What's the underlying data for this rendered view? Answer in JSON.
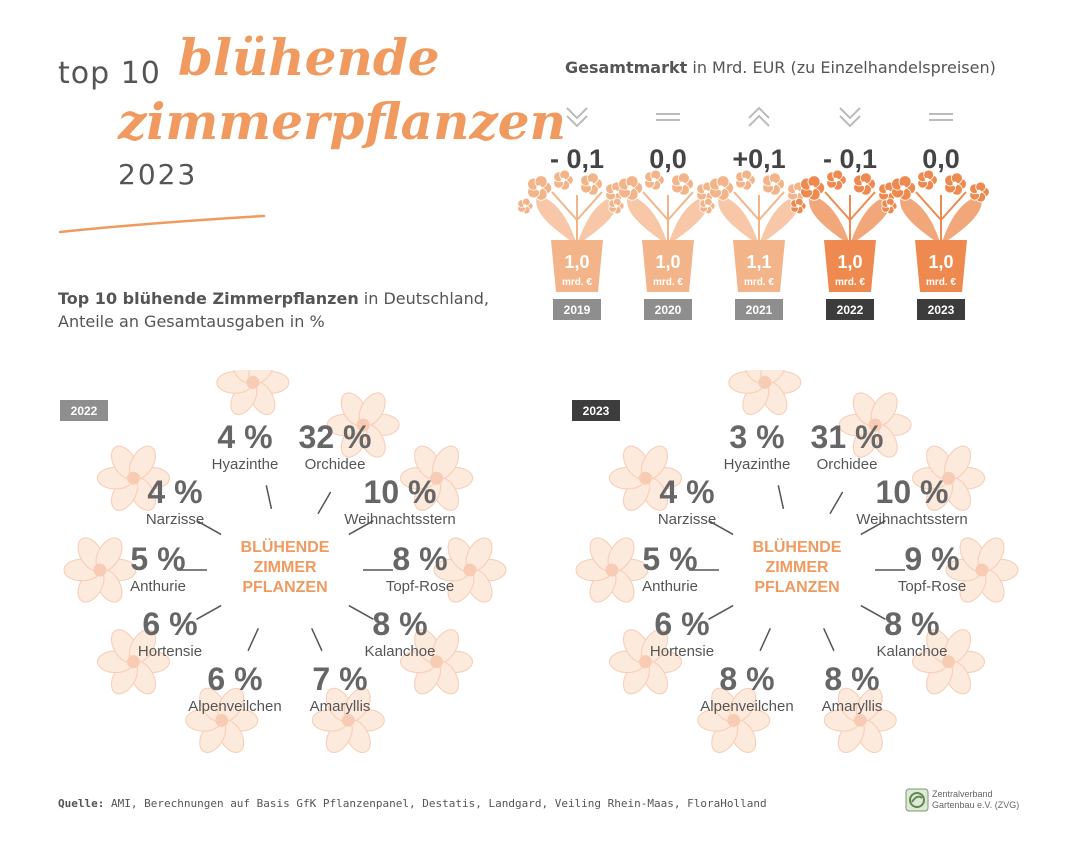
{
  "header": {
    "top10": "top 10",
    "script_line1": "blühende",
    "script_line2": "zimmerpflanzen",
    "year": "2023"
  },
  "subtitle": {
    "bold": "Top 10 blühende Zimmerpflanzen",
    "rest1": " in Deutschland,",
    "line2": "Anteile an Gesamtausgaben in %"
  },
  "market": {
    "title_bold": "Gesamtmarkt",
    "title_rest": " in Mrd. EUR (zu Einzelhandelspreisen)",
    "unit_label": "mrd. €",
    "colors": {
      "pot_light": "#f4b48a",
      "pot_dark": "#ee8a4f",
      "badge_light": "#8e8e8e",
      "badge_dark": "#3c3c3c"
    }
  },
  "chart_data": [
    {
      "type": "bar",
      "title": "Gesamtmarkt in Mrd. EUR (zu Einzelhandelspreisen)",
      "categories": [
        "2019",
        "2020",
        "2021",
        "2022",
        "2023"
      ],
      "values": [
        1.0,
        1.0,
        1.1,
        1.0,
        1.0
      ],
      "value_labels": [
        "1,0",
        "1,0",
        "1,1",
        "1,0",
        "1,0"
      ],
      "changes": [
        "- 0,1",
        "0,0",
        "+0,1",
        "- 0,1",
        "0,0"
      ],
      "trend_icons": [
        "double-chevron-down-icon",
        "equal-icon",
        "double-chevron-up-icon",
        "double-chevron-down-icon",
        "equal-icon"
      ]
    },
    {
      "type": "pie",
      "year_label": "2022",
      "center_label": [
        "BLÜHENDE",
        "ZIMMER",
        "PFLANZEN"
      ],
      "slices": [
        {
          "label": "Hyazinthe",
          "value": 4,
          "text": "4 %"
        },
        {
          "label": "Orchidee",
          "value": 32,
          "text": "32 %"
        },
        {
          "label": "Weihnachtsstern",
          "value": 10,
          "text": "10 %"
        },
        {
          "label": "Topf-Rose",
          "value": 8,
          "text": "8 %"
        },
        {
          "label": "Kalanchoe",
          "value": 8,
          "text": "8 %"
        },
        {
          "label": "Amaryllis",
          "value": 7,
          "text": "7 %"
        },
        {
          "label": "Alpenveilchen",
          "value": 6,
          "text": "6 %"
        },
        {
          "label": "Hortensie",
          "value": 6,
          "text": "6 %"
        },
        {
          "label": "Anthurie",
          "value": 5,
          "text": "5 %"
        },
        {
          "label": "Narzisse",
          "value": 4,
          "text": "4 %"
        }
      ]
    },
    {
      "type": "pie",
      "year_label": "2023",
      "center_label": [
        "BLÜHENDE",
        "ZIMMER",
        "PFLANZEN"
      ],
      "slices": [
        {
          "label": "Hyazinthe",
          "value": 3,
          "text": "3 %"
        },
        {
          "label": "Orchidee",
          "value": 31,
          "text": "31 %"
        },
        {
          "label": "Weihnachtsstern",
          "value": 10,
          "text": "10 %"
        },
        {
          "label": "Topf-Rose",
          "value": 9,
          "text": "9 %"
        },
        {
          "label": "Kalanchoe",
          "value": 8,
          "text": "8 %"
        },
        {
          "label": "Amaryllis",
          "value": 8,
          "text": "8 %"
        },
        {
          "label": "Alpenveilchen",
          "value": 8,
          "text": "8 %"
        },
        {
          "label": "Hortensie",
          "value": 6,
          "text": "6 %"
        },
        {
          "label": "Anthurie",
          "value": 5,
          "text": "5 %"
        },
        {
          "label": "Narzisse",
          "value": 4,
          "text": "4 %"
        }
      ]
    }
  ],
  "footer": {
    "source_bold": "Quelle:",
    "source_rest": " AMI, Berechnungen auf Basis GfK Pflanzenpanel, Destatis, Landgard, Veiling Rhein-Maas, FloraHolland",
    "logo_line1": "Zentralverband",
    "logo_line2": "Gartenbau e.V. (ZVG)"
  }
}
